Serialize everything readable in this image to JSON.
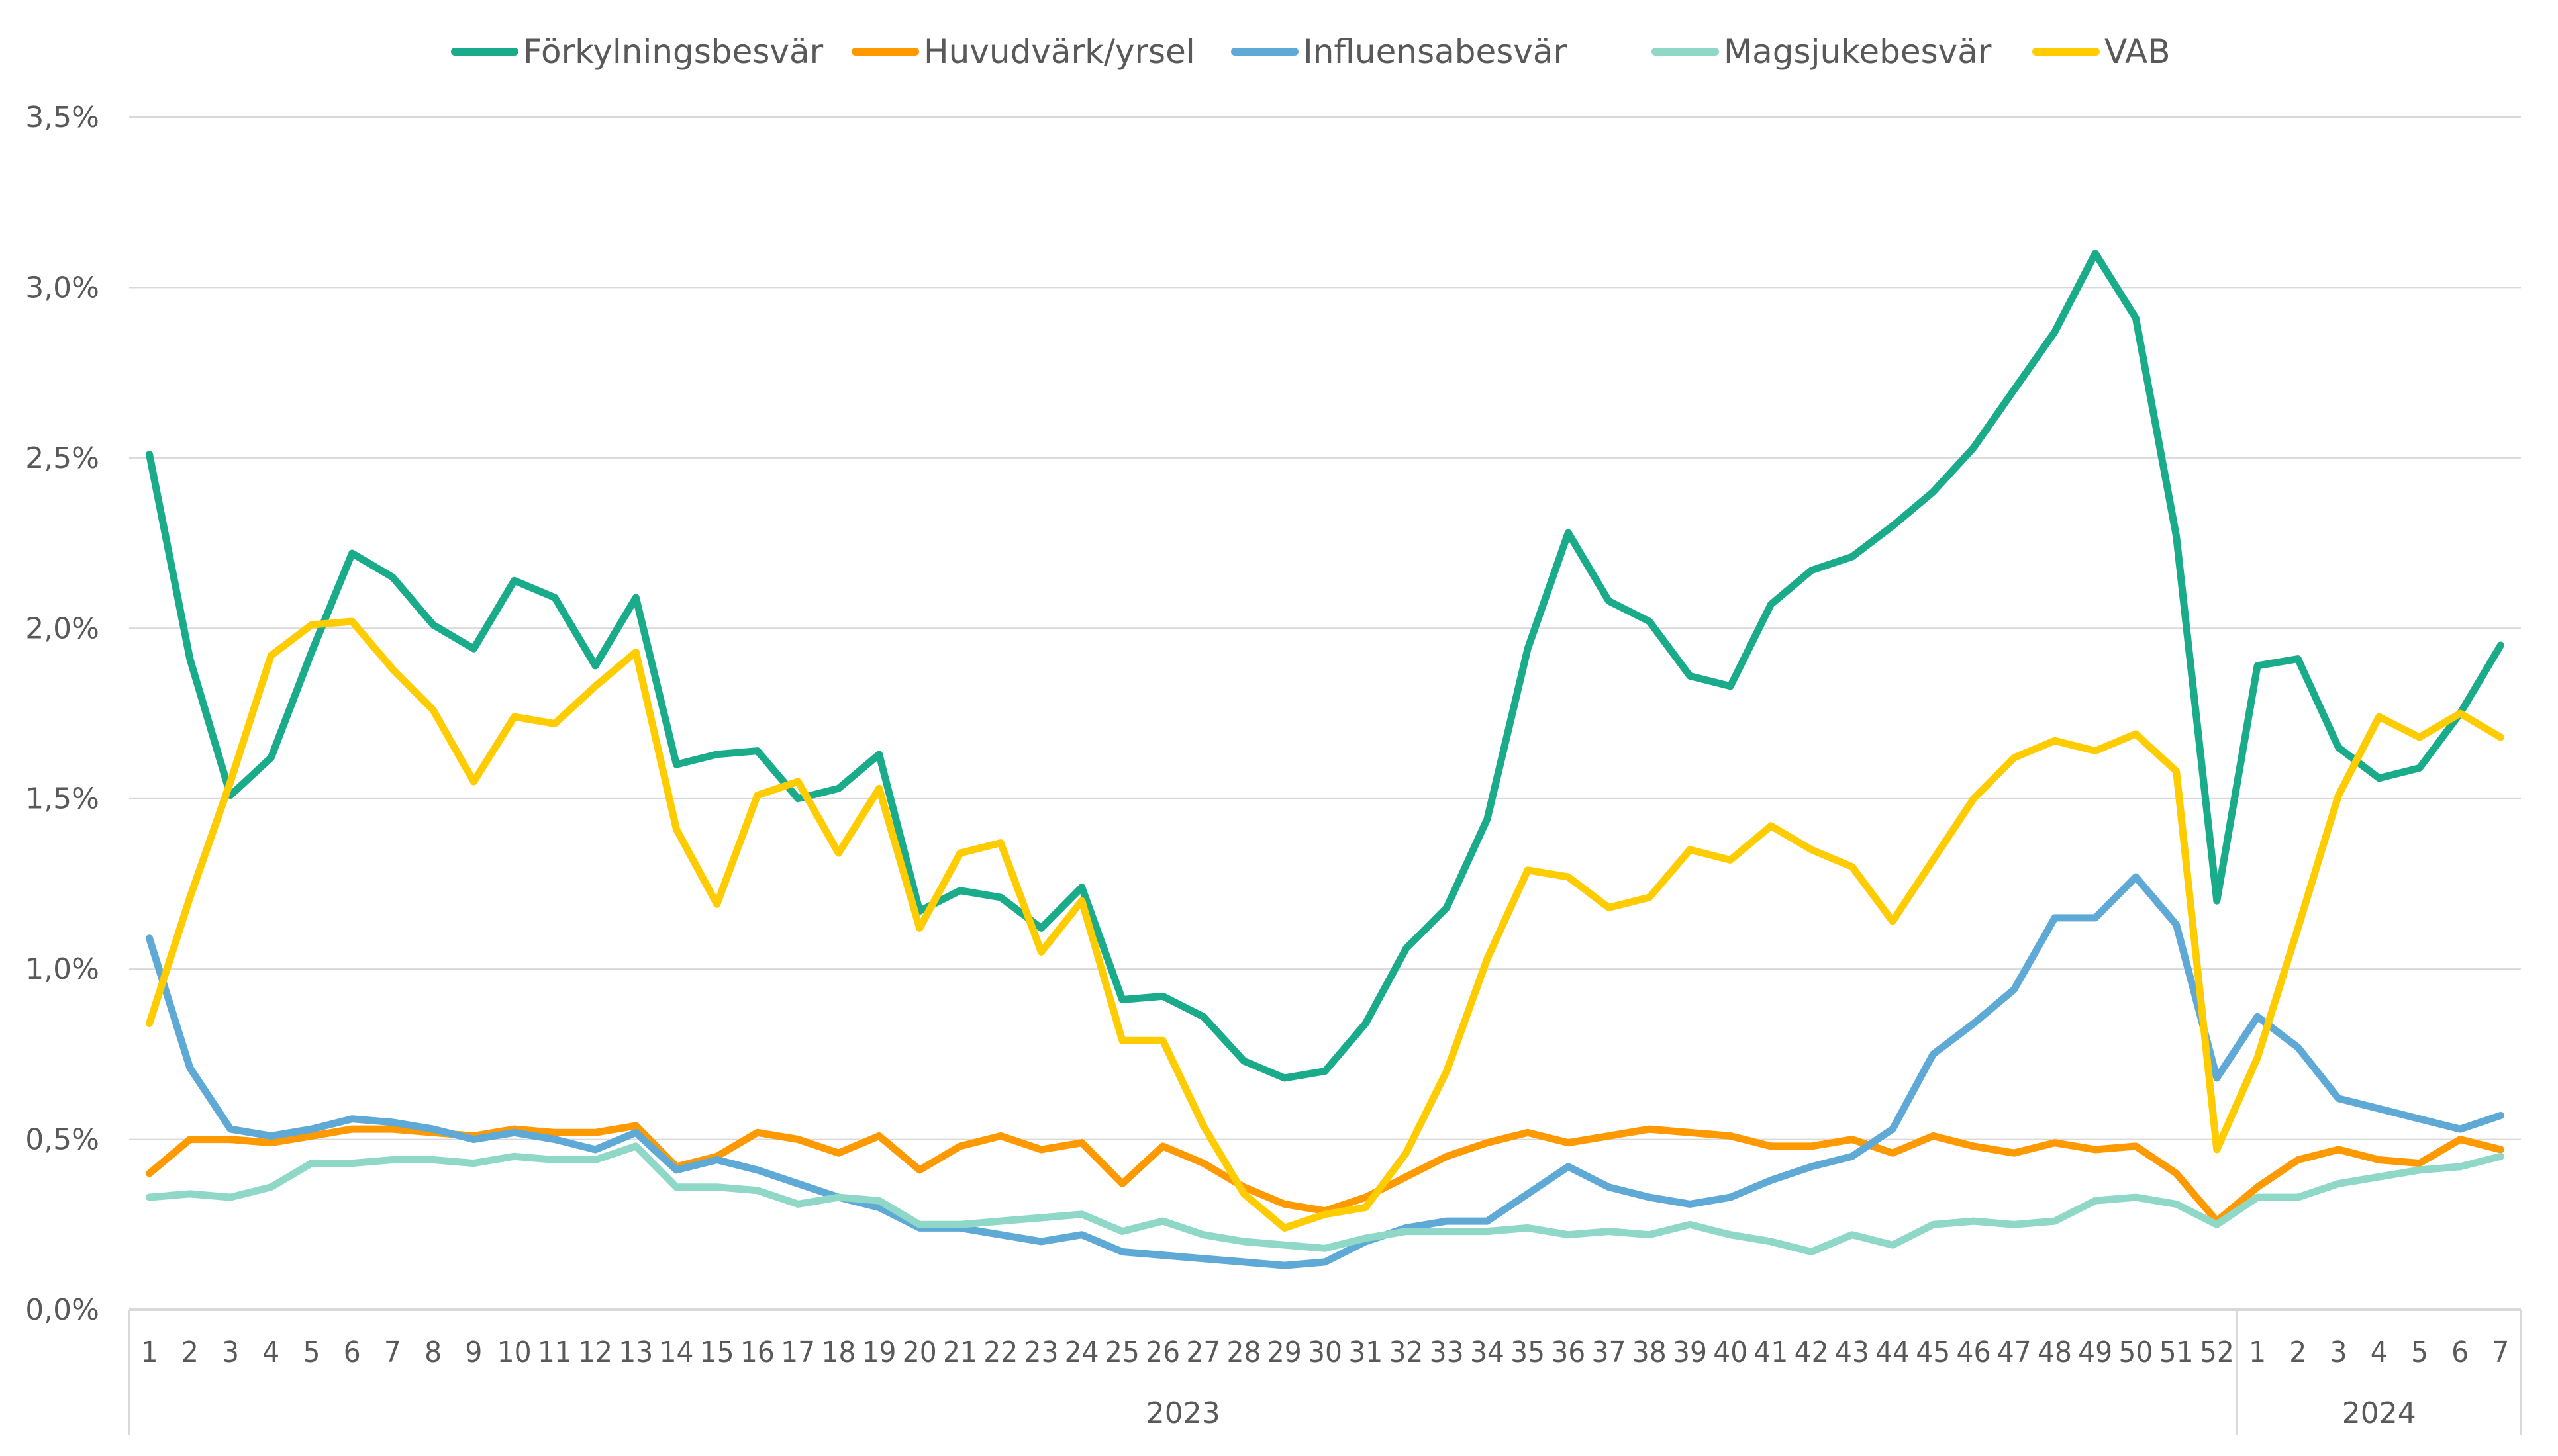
{
  "chart_data": {
    "type": "line",
    "title": "",
    "xlabel": "",
    "ylabel": "",
    "ylim": [
      0,
      3.5
    ],
    "yticks": [
      "0,0%",
      "0,5%",
      "1,0%",
      "1,5%",
      "2,0%",
      "2,5%",
      "3,0%",
      "3,5%"
    ],
    "grid": "horizontal",
    "legend_position": "top",
    "groups": [
      {
        "label": "2023",
        "weeks": [
          "1",
          "2",
          "3",
          "4",
          "5",
          "6",
          "7",
          "8",
          "9",
          "10",
          "11",
          "12",
          "13",
          "14",
          "15",
          "16",
          "17",
          "18",
          "19",
          "20",
          "21",
          "22",
          "23",
          "24",
          "25",
          "26",
          "27",
          "28",
          "29",
          "30",
          "31",
          "32",
          "33",
          "34",
          "35",
          "36",
          "37",
          "38",
          "39",
          "40",
          "41",
          "42",
          "43",
          "44",
          "45",
          "46",
          "47",
          "48",
          "49",
          "50",
          "51",
          "52"
        ]
      },
      {
        "label": "2024",
        "weeks": [
          "1",
          "2",
          "3",
          "4",
          "5",
          "6",
          "7"
        ]
      }
    ],
    "series": [
      {
        "name": "Förkylningsbesvär",
        "color": "#1aab8b",
        "values": [
          2.51,
          1.91,
          1.51,
          1.62,
          1.93,
          2.22,
          2.15,
          2.01,
          1.94,
          2.14,
          2.09,
          1.89,
          2.09,
          1.6,
          1.63,
          1.64,
          1.5,
          1.53,
          1.63,
          1.17,
          1.23,
          1.21,
          1.12,
          1.24,
          0.91,
          0.92,
          0.86,
          0.73,
          0.68,
          0.7,
          0.84,
          1.06,
          1.18,
          1.44,
          1.94,
          2.28,
          2.08,
          2.02,
          1.86,
          1.83,
          2.07,
          2.17,
          2.21,
          2.3,
          2.4,
          2.53,
          2.7,
          2.87,
          3.1,
          2.91,
          2.27,
          1.2,
          1.89,
          1.91,
          1.65,
          1.56,
          1.59,
          1.75,
          1.95
        ]
      },
      {
        "name": "Huvudvärk/yrsel",
        "color": "#ff9900",
        "values": [
          0.4,
          0.5,
          0.5,
          0.49,
          0.51,
          0.53,
          0.53,
          0.52,
          0.51,
          0.53,
          0.52,
          0.52,
          0.54,
          0.42,
          0.45,
          0.52,
          0.5,
          0.46,
          0.51,
          0.41,
          0.48,
          0.51,
          0.47,
          0.49,
          0.37,
          0.48,
          0.43,
          0.36,
          0.31,
          0.29,
          0.33,
          0.39,
          0.45,
          0.49,
          0.52,
          0.49,
          0.51,
          0.53,
          0.52,
          0.51,
          0.48,
          0.48,
          0.5,
          0.46,
          0.51,
          0.48,
          0.46,
          0.49,
          0.47,
          0.48,
          0.4,
          0.26,
          0.36,
          0.44,
          0.47,
          0.44,
          0.43,
          0.5,
          0.47
        ]
      },
      {
        "name": "Influensabesvär",
        "color": "#5fa9d6",
        "values": [
          1.09,
          0.71,
          0.53,
          0.51,
          0.53,
          0.56,
          0.55,
          0.53,
          0.5,
          0.52,
          0.5,
          0.47,
          0.52,
          0.41,
          0.44,
          0.41,
          0.37,
          0.33,
          0.3,
          0.24,
          0.24,
          0.22,
          0.2,
          0.22,
          0.17,
          0.16,
          0.15,
          0.14,
          0.13,
          0.14,
          0.2,
          0.24,
          0.26,
          0.26,
          0.34,
          0.42,
          0.36,
          0.33,
          0.31,
          0.33,
          0.38,
          0.42,
          0.45,
          0.53,
          0.75,
          0.84,
          0.94,
          1.15,
          1.15,
          1.27,
          1.13,
          0.68,
          0.86,
          0.77,
          0.62,
          0.59,
          0.56,
          0.53,
          0.57
        ]
      },
      {
        "name": "Magsjukebesvär",
        "color": "#8fd8c8",
        "values": [
          0.33,
          0.34,
          0.33,
          0.36,
          0.43,
          0.43,
          0.44,
          0.44,
          0.43,
          0.45,
          0.44,
          0.44,
          0.48,
          0.36,
          0.36,
          0.35,
          0.31,
          0.33,
          0.32,
          0.25,
          0.25,
          0.26,
          0.27,
          0.28,
          0.23,
          0.26,
          0.22,
          0.2,
          0.19,
          0.18,
          0.21,
          0.23,
          0.23,
          0.23,
          0.24,
          0.22,
          0.23,
          0.22,
          0.25,
          0.22,
          0.2,
          0.17,
          0.22,
          0.19,
          0.25,
          0.26,
          0.25,
          0.26,
          0.32,
          0.33,
          0.31,
          0.25,
          0.33,
          0.33,
          0.37,
          0.39,
          0.41,
          0.42,
          0.45
        ]
      },
      {
        "name": "VAB",
        "color": "#ffcc00",
        "values": [
          0.84,
          1.21,
          1.55,
          1.92,
          2.01,
          2.02,
          1.88,
          1.76,
          1.55,
          1.74,
          1.72,
          1.83,
          1.93,
          1.41,
          1.19,
          1.51,
          1.55,
          1.34,
          1.53,
          1.12,
          1.34,
          1.37,
          1.05,
          1.2,
          0.79,
          0.79,
          0.54,
          0.34,
          0.24,
          0.28,
          0.3,
          0.46,
          0.7,
          1.03,
          1.29,
          1.27,
          1.18,
          1.21,
          1.35,
          1.32,
          1.42,
          1.35,
          1.3,
          1.14,
          1.32,
          1.5,
          1.62,
          1.67,
          1.64,
          1.69,
          1.58,
          0.47,
          0.74,
          1.12,
          1.51,
          1.74,
          1.68,
          1.75,
          1.68
        ]
      }
    ]
  }
}
